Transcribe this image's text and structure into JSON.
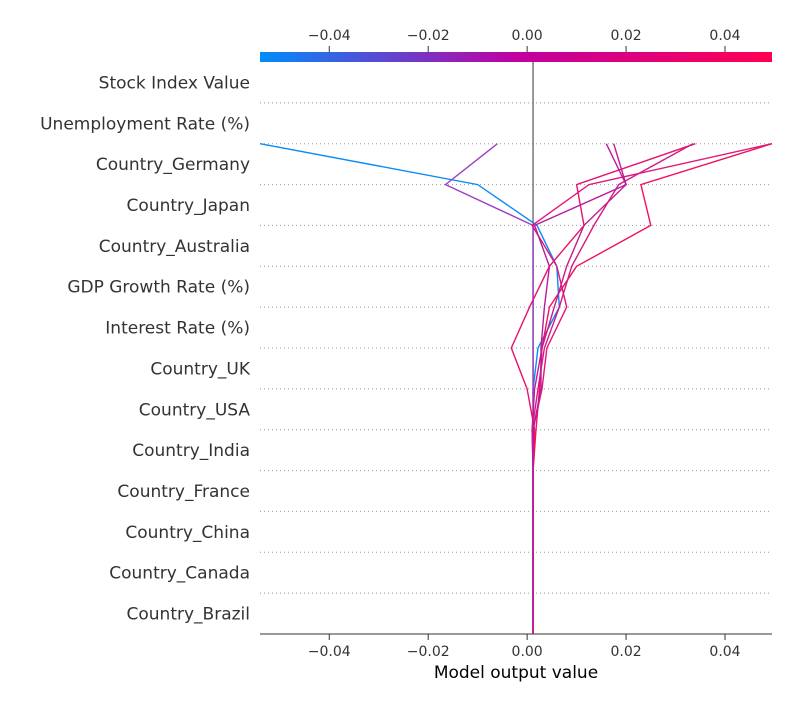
{
  "chart_data": {
    "type": "line",
    "title": "",
    "xlabel": "Model output value",
    "ylabel": "",
    "xlim": [
      -0.054,
      0.0495
    ],
    "xticks": [
      -0.04,
      -0.02,
      0.0,
      0.02,
      0.04
    ],
    "xtick_labels": [
      "−0.04",
      "−0.02",
      "0.00",
      "0.02",
      "0.04"
    ],
    "base_value": 0.0012,
    "colorbar": {
      "low_color": "#008bfb",
      "mid_color": "#c000a0",
      "high_color": "#ff0052"
    },
    "features": [
      "Stock Index Value",
      "Unemployment Rate (%)",
      "Country_Germany",
      "Country_Japan",
      "Country_Australia",
      "GDP Growth Rate (%)",
      "Interest Rate (%)",
      "Country_UK",
      "Country_USA",
      "Country_India",
      "Country_France",
      "Country_China",
      "Country_Canada",
      "Country_Brazil"
    ],
    "grid": true,
    "series": [
      {
        "color": "#0a8cf5",
        "x": [
          0.0012,
          0.0012,
          0.0012,
          0.0012,
          0.0012,
          0.0012,
          0.0012,
          0.0022,
          0.0065,
          0.006,
          0.002,
          -0.01,
          -0.054
        ]
      },
      {
        "color": "#9b3fc8",
        "x": [
          0.0012,
          0.0012,
          0.0012,
          0.0012,
          0.0012,
          0.0012,
          0.0012,
          0.0012,
          0.0012,
          0.0012,
          0.0012,
          -0.0165,
          -0.006
        ]
      },
      {
        "color": "#e8106c",
        "x": [
          0.0012,
          0.0012,
          0.0012,
          0.0012,
          0.0012,
          0.0015,
          0.0,
          -0.0032,
          0.0005,
          0.0045,
          0.0115,
          0.01,
          0.034
        ]
      },
      {
        "color": "#f0125e",
        "x": [
          0.0012,
          0.0012,
          0.0012,
          0.0012,
          0.0012,
          0.0018,
          0.0025,
          0.003,
          0.0045,
          0.01,
          0.025,
          0.023,
          0.0495
        ]
      },
      {
        "color": "#c51a8f",
        "x": [
          0.0012,
          0.0012,
          0.0012,
          0.0012,
          0.0012,
          0.001,
          0.0015,
          0.003,
          0.0055,
          0.008,
          0.0115,
          0.02,
          0.0175
        ]
      },
      {
        "color": "#d21a85",
        "x": [
          0.0012,
          0.0012,
          0.0012,
          0.0012,
          0.0012,
          0.001,
          0.0022,
          0.0035,
          0.0065,
          0.009,
          0.0135,
          0.0185,
          0.0335
        ]
      },
      {
        "color": "#e0167a",
        "x": [
          0.0012,
          0.0012,
          0.0012,
          0.0012,
          0.0012,
          0.0012,
          0.003,
          0.004,
          0.008,
          0.006,
          0.001,
          0.0125,
          0.0495
        ]
      },
      {
        "color": "#b81a9c",
        "x": [
          0.0012,
          0.0012,
          0.0012,
          0.0012,
          0.0012,
          0.0012,
          0.0028,
          0.0028,
          0.0035,
          0.0045,
          0.0015,
          0.02,
          0.016
        ]
      }
    ]
  }
}
